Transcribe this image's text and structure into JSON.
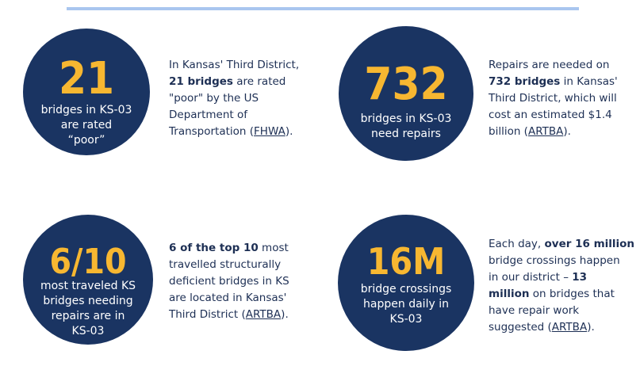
{
  "stats": [
    {
      "number": "21",
      "caption": [
        "bridges in KS-03",
        "are rated",
        "“poor”"
      ],
      "description": {
        "l1": "In Kansas' Third District,",
        "l2_bold": "21 bridges",
        "l2_rest": " are rated",
        "l3": "\"poor\" by the US",
        "l4": "Department of",
        "l5_pre": "Transportation (",
        "l5_link": "FHWA",
        "l5_post": ")."
      }
    },
    {
      "number": "732",
      "caption": [
        "bridges in KS-03",
        "need repairs"
      ],
      "description": {
        "l1": "Repairs are needed on",
        "l2_bold": "732 bridges",
        "l2_rest": " in Kansas'",
        "l3": "Third District, which will",
        "l4": "cost an estimated $1.4",
        "l5_pre": "billion (",
        "l5_link": "ARTBA",
        "l5_post": ")."
      }
    },
    {
      "number": "6/10",
      "caption": [
        "most traveled KS",
        "bridges needing",
        "repairs are in",
        "KS-03"
      ],
      "description": {
        "l1_bold_a": "6 of the top 10",
        "l1_rest": " most",
        "l2": "travelled structurally",
        "l3": "deficient bridges in KS",
        "l4": "are located in Kansas'",
        "l5_pre": "Third District (",
        "l5_link": "ARTBA",
        "l5_post": ")."
      }
    },
    {
      "number": "16M",
      "caption": [
        "bridge crossings",
        "happen daily in",
        "KS-03"
      ],
      "description": {
        "l1_pre": "Each day, ",
        "l1_bold": "over 16 million",
        "l2": "bridge crossings happen",
        "l3_pre": "in our district – ",
        "l3_bold": "13",
        "l4_bold": "million",
        "l4_rest": " on bridges that",
        "l5": "have repair work",
        "l6_pre": "suggested (",
        "l6_link": "ARTBA",
        "l6_post": ")."
      }
    }
  ]
}
